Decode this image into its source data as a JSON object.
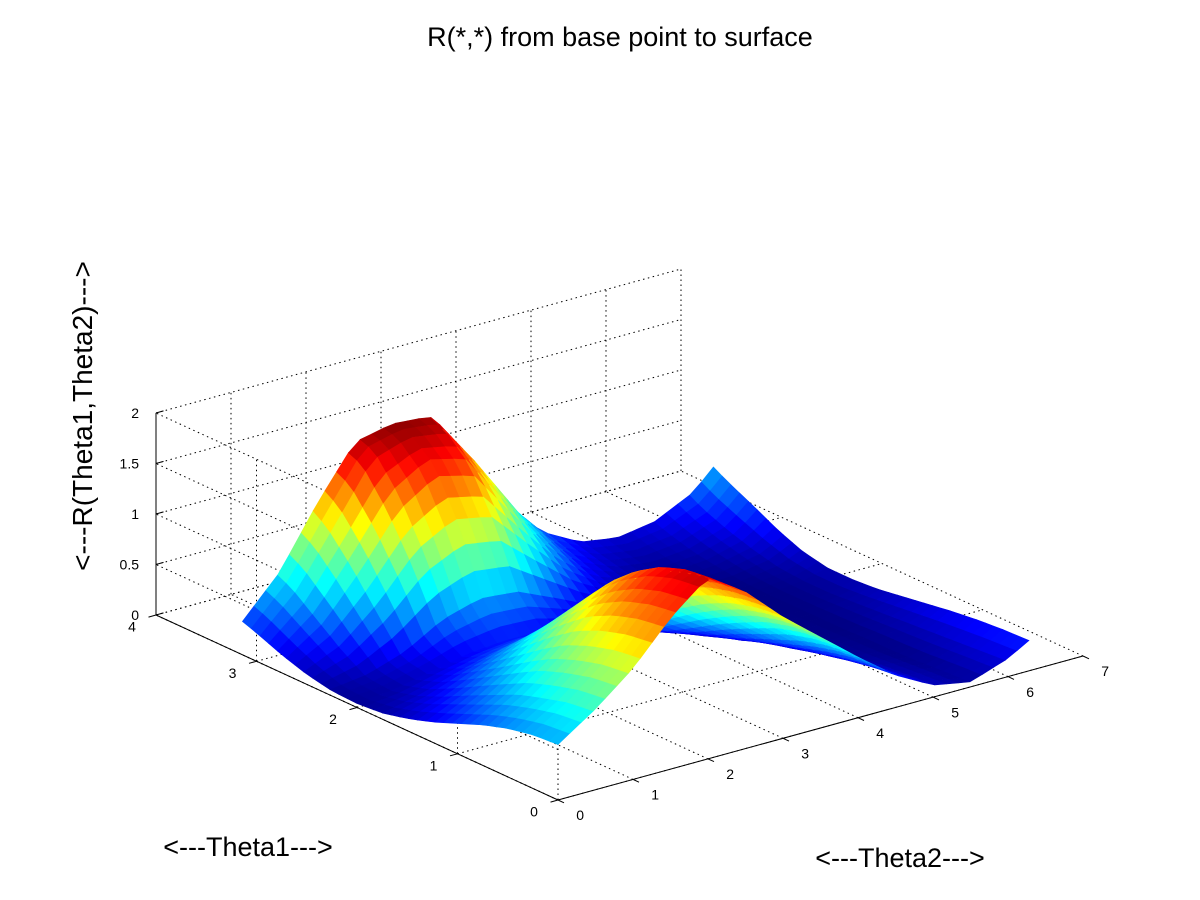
{
  "chart_data": {
    "type": "surface",
    "title": "R(*,*) from base point to surface",
    "xlabel": "<---Theta2--->",
    "ylabel": "<---Theta1--->",
    "zlabel": "<---R(Theta1,Theta2)--->",
    "xlim": [
      0,
      7
    ],
    "ylim": [
      0,
      4
    ],
    "zlim": [
      0,
      2
    ],
    "x_ticks": [
      0,
      1,
      2,
      3,
      4,
      5,
      6,
      7
    ],
    "y_ticks": [
      0,
      1,
      2,
      3,
      4
    ],
    "z_ticks": [
      0,
      0.5,
      1,
      1.5,
      2
    ],
    "x_tick_labels": [
      "0",
      "1",
      "2",
      "3",
      "4",
      "5",
      "6",
      "7"
    ],
    "y_tick_labels": [
      "0",
      "1",
      "2",
      "3",
      "4"
    ],
    "z_tick_labels": [
      "0",
      "0.5",
      "1",
      "1.5",
      "2"
    ],
    "grid": true,
    "colormap": "jet",
    "color_range": [
      0,
      1.9
    ],
    "surface_grid": {
      "theta2": [
        0,
        0.5,
        1.0,
        1.5,
        2.0,
        2.5,
        3.0,
        3.5,
        4.0,
        4.5,
        5.0,
        5.5,
        6.0,
        6.28
      ],
      "theta1": [
        0,
        0.25,
        0.5,
        0.75,
        1.0,
        1.25,
        1.5,
        1.75,
        2.0,
        2.25,
        2.5,
        2.75,
        3.0,
        3.14
      ],
      "R_rows_by_theta1": [
        [
          0.55,
          0.8,
          1.1,
          1.5,
          1.8,
          1.55,
          1.2,
          0.9,
          0.6,
          0.32,
          0.12,
          0.05,
          0.18,
          0.3
        ],
        [
          0.53,
          0.77,
          1.07,
          1.46,
          1.77,
          1.52,
          1.17,
          0.87,
          0.57,
          0.29,
          0.1,
          0.04,
          0.16,
          0.29
        ],
        [
          0.48,
          0.7,
          1.0,
          1.38,
          1.68,
          1.45,
          1.1,
          0.8,
          0.5,
          0.24,
          0.08,
          0.02,
          0.14,
          0.27
        ],
        [
          0.4,
          0.62,
          0.9,
          1.25,
          1.52,
          1.33,
          0.98,
          0.68,
          0.4,
          0.18,
          0.05,
          0.01,
          0.12,
          0.24
        ],
        [
          0.3,
          0.5,
          0.75,
          1.05,
          1.3,
          1.15,
          0.82,
          0.55,
          0.3,
          0.12,
          0.03,
          0.01,
          0.1,
          0.2
        ],
        [
          0.2,
          0.38,
          0.58,
          0.82,
          1.0,
          0.92,
          0.64,
          0.4,
          0.2,
          0.08,
          0.02,
          0.0,
          0.08,
          0.16
        ],
        [
          0.12,
          0.25,
          0.42,
          0.58,
          0.7,
          0.65,
          0.45,
          0.26,
          0.12,
          0.05,
          0.01,
          0.0,
          0.06,
          0.12
        ],
        [
          0.06,
          0.14,
          0.26,
          0.36,
          0.42,
          0.4,
          0.28,
          0.15,
          0.06,
          0.02,
          0.0,
          0.0,
          0.04,
          0.1
        ],
        [
          0.04,
          0.07,
          0.15,
          0.22,
          0.25,
          0.24,
          0.17,
          0.08,
          0.03,
          0.01,
          0.0,
          0.0,
          0.04,
          0.1
        ],
        [
          0.05,
          0.09,
          0.2,
          0.4,
          0.5,
          0.47,
          0.32,
          0.16,
          0.06,
          0.02,
          0.0,
          0.01,
          0.06,
          0.15
        ],
        [
          0.1,
          0.25,
          0.55,
          0.95,
          1.15,
          1.08,
          0.72,
          0.38,
          0.15,
          0.05,
          0.02,
          0.04,
          0.12,
          0.25
        ],
        [
          0.18,
          0.45,
          0.9,
          1.4,
          1.65,
          1.55,
          1.05,
          0.58,
          0.25,
          0.1,
          0.05,
          0.08,
          0.2,
          0.38
        ],
        [
          0.28,
          0.65,
          1.2,
          1.75,
          1.85,
          1.8,
          1.3,
          0.75,
          0.35,
          0.16,
          0.1,
          0.15,
          0.3,
          0.5
        ],
        [
          0.33,
          0.72,
          1.3,
          1.8,
          1.88,
          1.85,
          1.38,
          0.8,
          0.4,
          0.2,
          0.14,
          0.2,
          0.38,
          0.58
        ]
      ]
    }
  }
}
